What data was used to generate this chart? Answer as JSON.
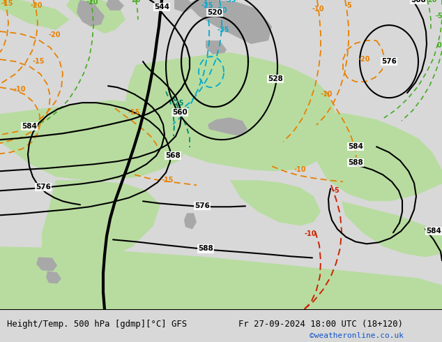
{
  "title_left": "Height/Temp. 500 hPa [gdmp][°C] GFS",
  "title_right": "Fr 27-09-2024 18:00 UTC (18+120)",
  "watermark": "©weatheronline.co.uk",
  "bg_light": "#d8d8d8",
  "land_green": "#b8dca0",
  "land_gray": "#a8a8a8",
  "black": "#000000",
  "orange": "#e88000",
  "red": "#cc2200",
  "cyan": "#00aacc",
  "teal": "#008866",
  "green_dash": "#44aa22",
  "white": "#ffffff"
}
